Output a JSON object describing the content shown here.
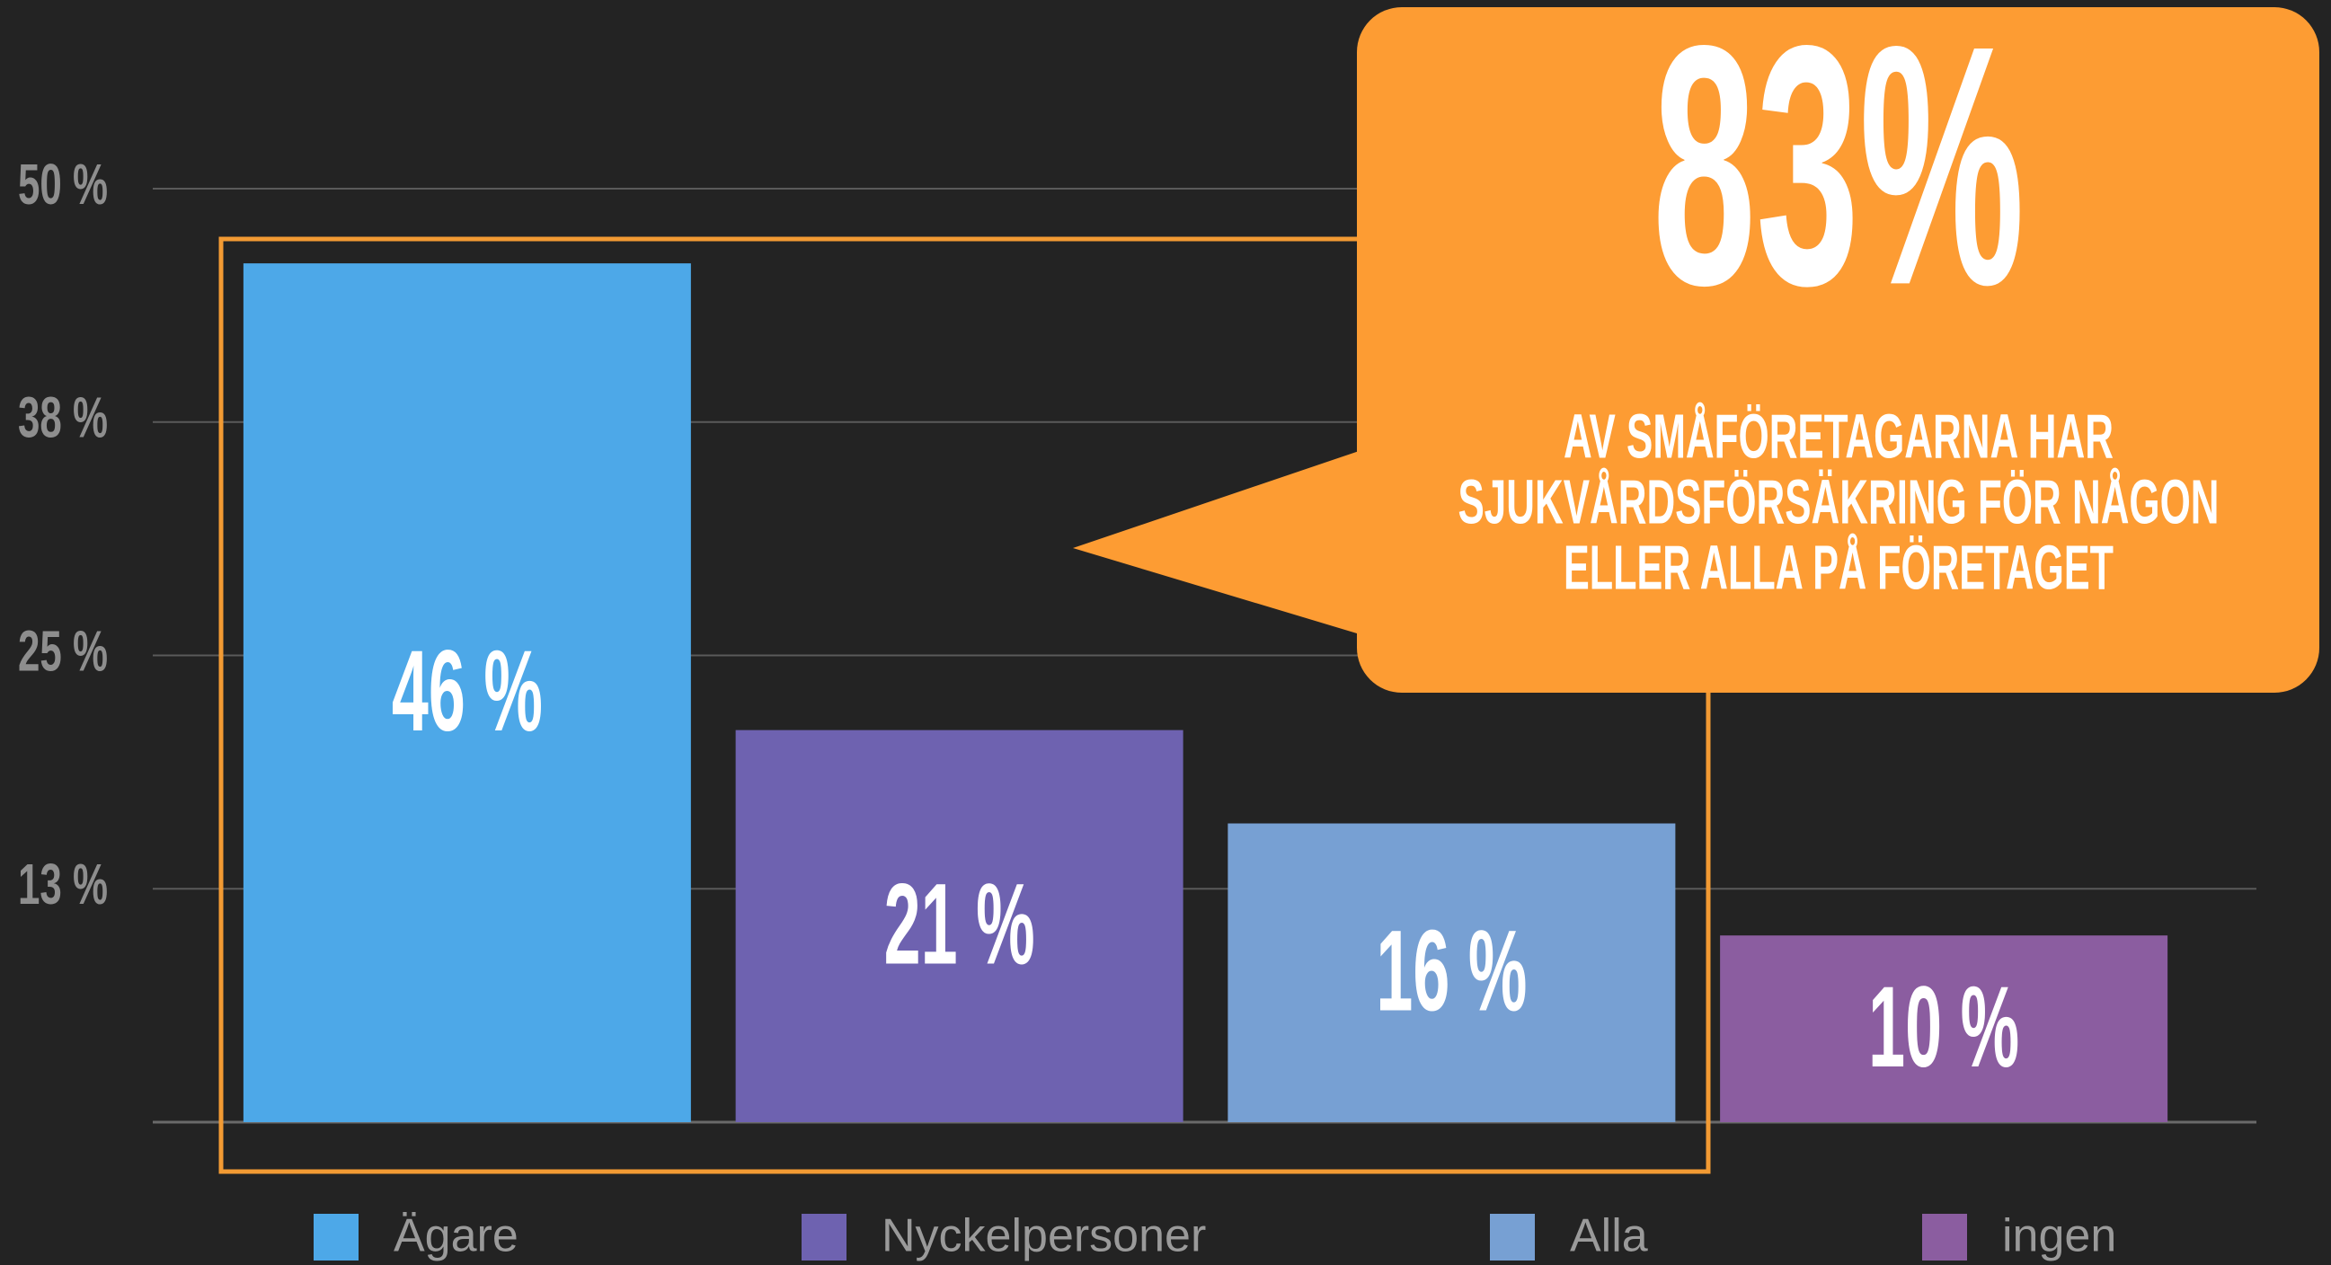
{
  "chart_data": {
    "type": "bar",
    "categories": [
      "Ägare",
      "Nyckelpersoner",
      "Alla",
      "ingen"
    ],
    "series": [
      {
        "values": [
          46,
          21,
          16,
          10
        ],
        "value_labels": [
          "46 %",
          "21 %",
          "16 %",
          "10 %"
        ],
        "colors": [
          "#4da8e8",
          "#6e62b0",
          "#77a0d3",
          "#8b5da0"
        ]
      }
    ],
    "ylim": [
      0,
      50
    ],
    "yticks": [
      {
        "value": 12.5,
        "label": "13 %"
      },
      {
        "value": 25,
        "label": "25 %"
      },
      {
        "value": 37.5,
        "label": "38 %"
      },
      {
        "value": 50,
        "label": "50 %"
      }
    ],
    "grid": true,
    "legend": "bottom",
    "annotations": [
      {
        "text": "83%"
      },
      {
        "lines": [
          "AV SMÅFÖRETAGARNA HAR",
          "SJUKVÅRDSFÖRSÄKRING FÖR NÅGON",
          "ELLER ALLA PÅ FÖRETAGET"
        ]
      }
    ]
  }
}
